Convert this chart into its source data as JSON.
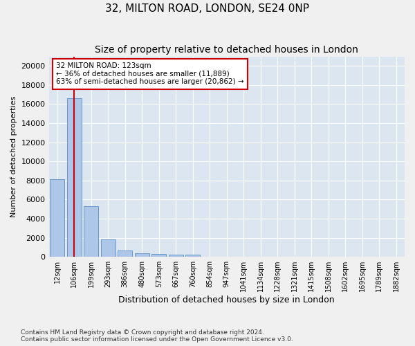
{
  "title": "32, MILTON ROAD, LONDON, SE24 0NP",
  "subtitle": "Size of property relative to detached houses in London",
  "xlabel": "Distribution of detached houses by size in London",
  "ylabel": "Number of detached properties",
  "bar_values": [
    8100,
    16600,
    5300,
    1850,
    650,
    350,
    270,
    220,
    200,
    0,
    0,
    0,
    0,
    0,
    0,
    0,
    0,
    0,
    0,
    0,
    0
  ],
  "categories": [
    "12sqm",
    "106sqm",
    "199sqm",
    "293sqm",
    "386sqm",
    "480sqm",
    "573sqm",
    "667sqm",
    "760sqm",
    "854sqm",
    "947sqm",
    "1041sqm",
    "1134sqm",
    "1228sqm",
    "1321sqm",
    "1415sqm",
    "1508sqm",
    "1602sqm",
    "1695sqm",
    "1789sqm",
    "1882sqm"
  ],
  "bar_color": "#aec7e8",
  "bar_edge_color": "#6699cc",
  "vline_x": 1,
  "vline_color": "#cc0000",
  "annotation_title": "32 MILTON ROAD: 123sqm",
  "annotation_line1": "← 36% of detached houses are smaller (11,889)",
  "annotation_line2": "63% of semi-detached houses are larger (20,862) →",
  "annotation_box_color": "#ffffff",
  "annotation_box_edge": "#cc0000",
  "ylim": [
    0,
    21000
  ],
  "yticks": [
    0,
    2000,
    4000,
    6000,
    8000,
    10000,
    12000,
    14000,
    16000,
    18000,
    20000
  ],
  "footer_line1": "Contains HM Land Registry data © Crown copyright and database right 2024.",
  "footer_line2": "Contains public sector information licensed under the Open Government Licence v3.0.",
  "bg_color": "#dce6f0",
  "fig_bg_color": "#f0f0f0",
  "grid_color": "#ffffff"
}
